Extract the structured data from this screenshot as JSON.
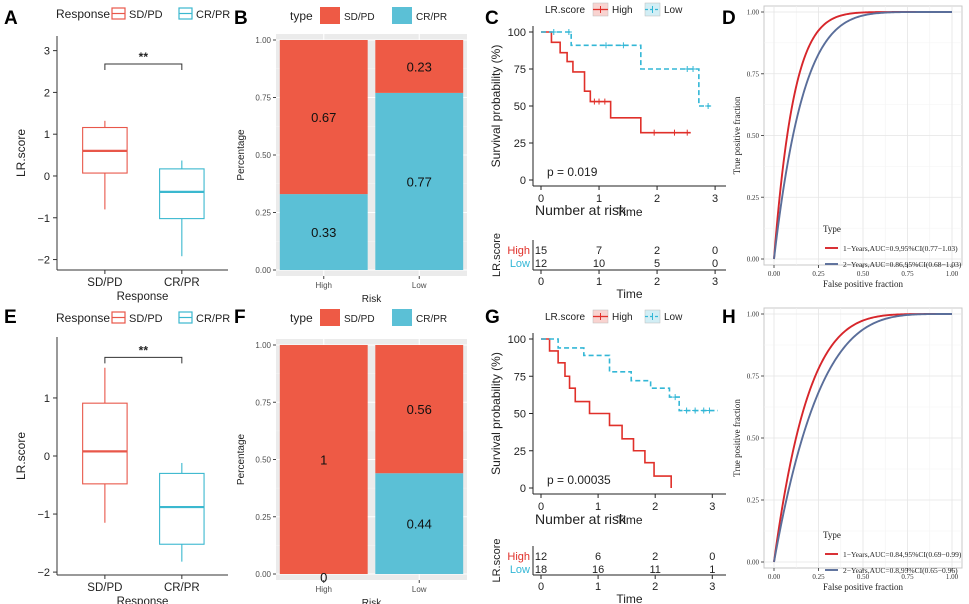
{
  "chart_data": [
    {
      "panel": "A",
      "type": "box",
      "legend_title": "Response",
      "legend_items": [
        "SD/PD",
        "CR/PR"
      ],
      "colors": [
        "#E8574A",
        "#3BB8CF"
      ],
      "categories": [
        "SD/PD",
        "CR/PR"
      ],
      "boxes": [
        {
          "min": -0.8,
          "q1": 0.07,
          "median": 0.6,
          "q3": 1.16,
          "max": 1.32
        },
        {
          "min": -1.92,
          "q1": -1.02,
          "median": -0.38,
          "q3": 0.17,
          "max": 0.37
        }
      ],
      "ylim": [
        -2.25,
        3.35
      ],
      "yticks": [
        -2,
        -1,
        0,
        1,
        2,
        3
      ],
      "xlabel": "Response",
      "ylabel": "LR.score",
      "signif": "**",
      "signif_y": 2.68
    },
    {
      "panel": "B",
      "type": "stacked_bar",
      "legend_title": "type",
      "legend_items": [
        "SD/PD",
        "CR/PR"
      ],
      "colors": [
        "#EE5A45",
        "#5BC0D6"
      ],
      "categories": [
        "High",
        "Low"
      ],
      "series": [
        {
          "name": "SD/PD",
          "values": [
            0.67,
            0.23
          ]
        },
        {
          "name": "CR/PR",
          "values": [
            0.33,
            0.77
          ]
        }
      ],
      "labels": [
        [
          "0.67",
          "0.23"
        ],
        [
          "0.33",
          "0.77"
        ]
      ],
      "ylim": [
        0,
        1
      ],
      "yticks": [
        "0.00",
        "0.25",
        "0.50",
        "0.75",
        "1.00"
      ],
      "xlabel": "Risk",
      "ylabel": "Percentage"
    },
    {
      "panel": "C",
      "type": "km",
      "legend_title": "LR.score",
      "legend_items": [
        "High",
        "Low"
      ],
      "colors": [
        "#E0302A",
        "#33B7D6"
      ],
      "xlim": [
        0,
        3.05
      ],
      "xticks": [
        0,
        1,
        2,
        3
      ],
      "ylim": [
        0,
        100
      ],
      "yticks": [
        0,
        25,
        50,
        75,
        100
      ],
      "xlabel": "Time",
      "ylabel": "Survival probability (%)",
      "pvalue": "p = 0.019",
      "curves": [
        {
          "name": "High",
          "steps": [
            [
              0,
              100
            ],
            [
              0.18,
              93
            ],
            [
              0.33,
              86
            ],
            [
              0.45,
              80
            ],
            [
              0.55,
              73
            ],
            [
              0.75,
              60
            ],
            [
              0.85,
              53
            ],
            [
              1.2,
              42
            ],
            [
              1.72,
              32
            ],
            [
              2.58,
              32
            ]
          ],
          "censors": [
            [
              0.92,
              53
            ],
            [
              1.0,
              53
            ],
            [
              1.1,
              53
            ],
            [
              1.95,
              32
            ],
            [
              2.3,
              32
            ],
            [
              2.52,
              32
            ]
          ]
        },
        {
          "name": "Low",
          "steps": [
            [
              0,
              100
            ],
            [
              0.35,
              100
            ],
            [
              0.52,
              91
            ],
            [
              1.72,
              75
            ],
            [
              2.72,
              50
            ],
            [
              2.92,
              50
            ]
          ],
          "censors": [
            [
              0.22,
              100
            ],
            [
              0.48,
              100
            ],
            [
              1.12,
              91
            ],
            [
              1.42,
              91
            ],
            [
              2.52,
              75
            ],
            [
              2.62,
              75
            ],
            [
              2.88,
              50
            ]
          ]
        }
      ],
      "risk_table": {
        "title": "Number at risk",
        "ylabel": "LR.score",
        "groups": [
          "High",
          "Low"
        ],
        "rows": [
          [
            "15",
            "7",
            "2",
            "0"
          ],
          [
            "12",
            "10",
            "5",
            "0"
          ]
        ]
      }
    },
    {
      "panel": "D",
      "type": "roc",
      "xlabel": "False positive fraction",
      "ylabel": "True positive fraction",
      "ticks": [
        "0.00",
        "0.25",
        "0.50",
        "0.75",
        "1.00"
      ],
      "legend_title": "Type",
      "curves": [
        {
          "name": "1−Years,AUC=0.9,95%CI(0.77−1.03)",
          "color": "#D7262B",
          "auc": 0.9
        },
        {
          "name": "2−Years,AUC=0.86,95%CI(0.68−1.03)",
          "color": "#5A6E9A",
          "auc": 0.86
        }
      ]
    },
    {
      "panel": "E",
      "type": "box",
      "legend_title": "Response",
      "legend_items": [
        "SD/PD",
        "CR/PR"
      ],
      "colors": [
        "#E8574A",
        "#3BB8CF"
      ],
      "categories": [
        "SD/PD",
        "CR/PR"
      ],
      "boxes": [
        {
          "min": -1.15,
          "q1": -0.48,
          "median": 0.08,
          "q3": 0.91,
          "max": 1.52
        },
        {
          "min": -1.82,
          "q1": -1.52,
          "median": -0.88,
          "q3": -0.3,
          "max": -0.12
        }
      ],
      "ylim": [
        -2.05,
        2.05
      ],
      "yticks": [
        -2,
        -1,
        0,
        1
      ],
      "xlabel": "Response",
      "ylabel": "LR.score",
      "signif": "**",
      "signif_y": 1.7
    },
    {
      "panel": "F",
      "type": "stacked_bar",
      "legend_title": "type",
      "legend_items": [
        "SD/PD",
        "CR/PR"
      ],
      "colors": [
        "#EE5A45",
        "#5BC0D6"
      ],
      "categories": [
        "High",
        "Low"
      ],
      "series": [
        {
          "name": "SD/PD",
          "values": [
            1.0,
            0.56
          ]
        },
        {
          "name": "CR/PR",
          "values": [
            0.0,
            0.44
          ]
        }
      ],
      "labels": [
        [
          "1",
          "0.56"
        ],
        [
          "0",
          "0.44"
        ]
      ],
      "ylim": [
        0,
        1
      ],
      "yticks": [
        "0.00",
        "0.25",
        "0.50",
        "0.75",
        "1.00"
      ],
      "xlabel": "Risk",
      "ylabel": "Percentage"
    },
    {
      "panel": "G",
      "type": "km",
      "legend_title": "LR.score",
      "legend_items": [
        "High",
        "Low"
      ],
      "colors": [
        "#E0302A",
        "#33B7D6"
      ],
      "xlim": [
        0,
        3.1
      ],
      "xticks": [
        0,
        1,
        2,
        3
      ],
      "ylim": [
        0,
        100
      ],
      "yticks": [
        0,
        25,
        50,
        75,
        100
      ],
      "xlabel": "Time",
      "ylabel": "Survival probability (%)",
      "pvalue": "p = 0.00035",
      "curves": [
        {
          "name": "High",
          "steps": [
            [
              0,
              100
            ],
            [
              0.15,
              92
            ],
            [
              0.3,
              84
            ],
            [
              0.42,
              75
            ],
            [
              0.5,
              67
            ],
            [
              0.6,
              58
            ],
            [
              0.85,
              50
            ],
            [
              1.2,
              42
            ],
            [
              1.42,
              33
            ],
            [
              1.62,
              25
            ],
            [
              1.82,
              17
            ],
            [
              1.98,
              8
            ],
            [
              2.28,
              0
            ]
          ],
          "censors": []
        },
        {
          "name": "Low",
          "steps": [
            [
              0,
              100
            ],
            [
              0.3,
              94
            ],
            [
              0.75,
              89
            ],
            [
              1.2,
              78
            ],
            [
              1.58,
              72
            ],
            [
              1.92,
              67
            ],
            [
              2.25,
              61
            ],
            [
              2.42,
              52
            ],
            [
              3.1,
              52
            ]
          ],
          "censors": [
            [
              2.35,
              61
            ],
            [
              2.55,
              52
            ],
            [
              2.7,
              52
            ],
            [
              2.85,
              52
            ],
            [
              2.95,
              52
            ]
          ]
        }
      ],
      "risk_table": {
        "title": "Number at risk",
        "ylabel": "LR.score",
        "groups": [
          "High",
          "Low"
        ],
        "rows": [
          [
            "12",
            "6",
            "2",
            "0"
          ],
          [
            "18",
            "16",
            "11",
            "1"
          ]
        ]
      }
    },
    {
      "panel": "H",
      "type": "roc",
      "xlabel": "False positive fraction",
      "ylabel": "True positive fraction",
      "ticks": [
        "0.00",
        "0.25",
        "0.50",
        "0.75",
        "1.00"
      ],
      "legend_title": "Type",
      "curves": [
        {
          "name": "1−Years,AUC=0.84,95%CI(0.69−0.99)",
          "color": "#D7262B",
          "auc": 0.84
        },
        {
          "name": "2−Years,AUC=0.8,95%CI(0.65−0.96)",
          "color": "#5A6E9A",
          "auc": 0.8
        }
      ]
    }
  ]
}
